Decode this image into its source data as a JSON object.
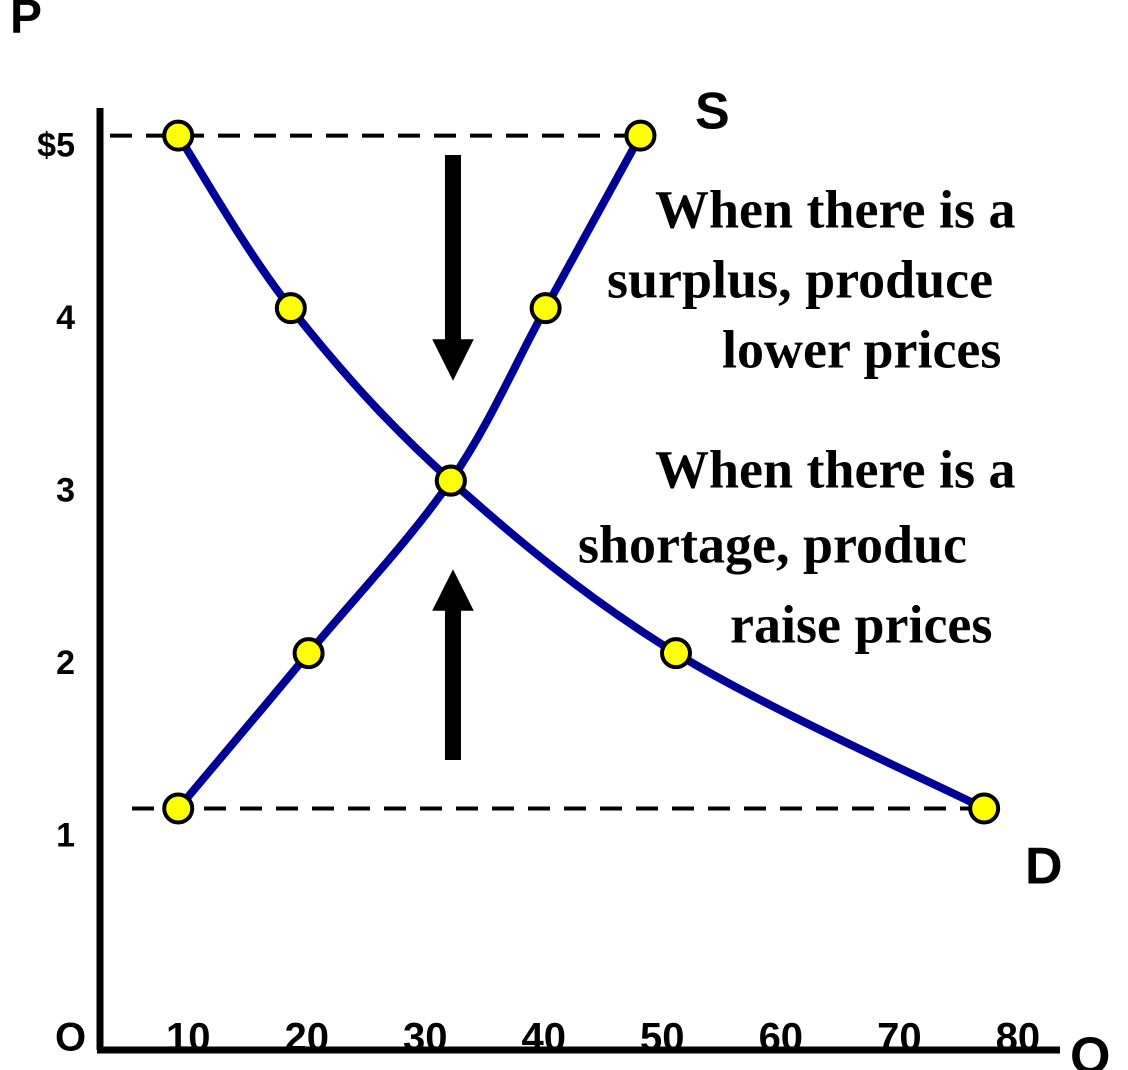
{
  "chart_data": {
    "type": "line",
    "x_label": "Q",
    "y_label": "P",
    "origin_label": "O",
    "xlim": [
      3.4,
      84.4
    ],
    "ylim": [
      -0.3,
      5.16
    ],
    "xticks": [
      10,
      20,
      30,
      40,
      50,
      60,
      70,
      80
    ],
    "yticks": [
      {
        "value": 5,
        "label": "$5"
      },
      4,
      3,
      2,
      1
    ],
    "series": [
      {
        "name": "S",
        "color": "#000099",
        "x": [
          10,
          21,
          33,
          41,
          49
        ],
        "values": [
          1.1,
          2,
          3,
          4,
          5
        ]
      },
      {
        "name": "D",
        "color": "#000099",
        "x": [
          10,
          19.5,
          33,
          52,
          78
        ],
        "values": [
          5,
          4,
          3,
          2,
          1.1
        ]
      }
    ],
    "marker_color": "#ffff00",
    "annotations": [
      [
        "When there is a",
        "surplus, produce",
        "lower prices"
      ],
      [
        "When there is a",
        "shortage, produc",
        "raise prices"
      ]
    ]
  }
}
